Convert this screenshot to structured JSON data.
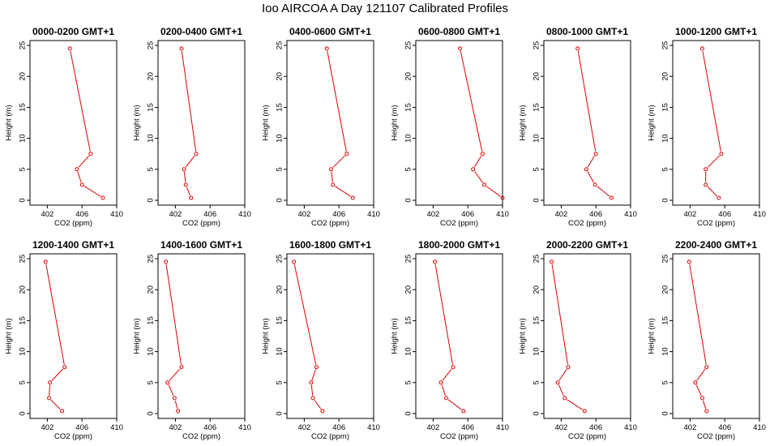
{
  "title": "Ioo AIRCOA A  Day 121107  Calibrated Profiles",
  "colors": {
    "series": "#dd0000",
    "axis": "#000000"
  },
  "chart_data": {
    "type": "line",
    "shared": {
      "xlabel": "CO2 (ppm)",
      "ylabel": "Height (m)",
      "xlim": [
        400,
        410
      ],
      "ylim": [
        0,
        25
      ],
      "xticks": [
        402,
        406,
        410
      ],
      "yticks": [
        0,
        5,
        10,
        15,
        20,
        25
      ],
      "grid": false,
      "legend": "none"
    },
    "panels": [
      {
        "title": "0000-0200 GMT+1",
        "x": [
          404.6,
          407.0,
          405.4,
          406.0,
          408.4
        ],
        "y": [
          24.5,
          7.5,
          5.0,
          2.5,
          0.4
        ]
      },
      {
        "title": "0200-0400 GMT+1",
        "x": [
          402.7,
          404.4,
          403.0,
          403.2,
          403.8
        ],
        "y": [
          24.5,
          7.5,
          5.0,
          2.5,
          0.4
        ]
      },
      {
        "title": "0400-0600 GMT+1",
        "x": [
          404.6,
          406.9,
          405.1,
          405.3,
          407.6
        ],
        "y": [
          24.5,
          7.5,
          5.0,
          2.5,
          0.4
        ]
      },
      {
        "title": "0600-0800 GMT+1",
        "x": [
          405.1,
          407.7,
          406.6,
          407.9,
          410.0
        ],
        "y": [
          24.5,
          7.5,
          5.0,
          2.5,
          0.4
        ]
      },
      {
        "title": "0800-1000 GMT+1",
        "x": [
          403.9,
          406.0,
          404.9,
          405.9,
          407.8
        ],
        "y": [
          24.5,
          7.5,
          5.0,
          2.5,
          0.4
        ]
      },
      {
        "title": "1000-1200 GMT+1",
        "x": [
          403.4,
          405.6,
          403.8,
          403.8,
          405.3
        ],
        "y": [
          24.5,
          7.5,
          5.0,
          2.5,
          0.4
        ]
      },
      {
        "title": "1200-1400 GMT+1",
        "x": [
          401.8,
          404.0,
          402.3,
          402.2,
          403.7
        ],
        "y": [
          24.5,
          7.5,
          5.0,
          2.5,
          0.4
        ]
      },
      {
        "title": "1400-1600 GMT+1",
        "x": [
          400.9,
          402.7,
          401.1,
          401.9,
          402.3
        ],
        "y": [
          24.5,
          7.5,
          5.0,
          2.5,
          0.4
        ]
      },
      {
        "title": "1600-1800 GMT+1",
        "x": [
          400.8,
          403.4,
          402.8,
          403.0,
          404.1
        ],
        "y": [
          24.5,
          7.5,
          5.0,
          2.5,
          0.4
        ]
      },
      {
        "title": "1800-2000 GMT+1",
        "x": [
          402.2,
          404.3,
          402.9,
          403.5,
          405.5
        ],
        "y": [
          24.5,
          7.5,
          5.0,
          2.5,
          0.4
        ]
      },
      {
        "title": "2000-2200 GMT+1",
        "x": [
          400.9,
          402.8,
          401.6,
          402.4,
          404.7
        ],
        "y": [
          24.5,
          7.5,
          5.0,
          2.5,
          0.4
        ]
      },
      {
        "title": "2200-2400 GMT+1",
        "x": [
          401.9,
          403.9,
          402.6,
          403.4,
          403.9
        ],
        "y": [
          24.5,
          7.5,
          5.0,
          2.5,
          0.4
        ]
      }
    ]
  }
}
